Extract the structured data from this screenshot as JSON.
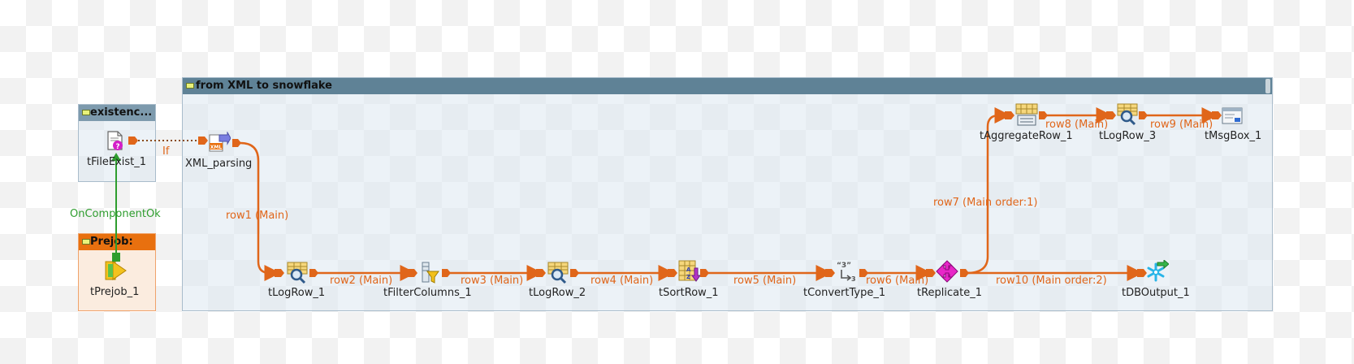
{
  "subjobs": {
    "main": "from XML to snowflake",
    "exist": "existenc...",
    "prejob": "Prejob:"
  },
  "components": {
    "tFileExist_1": "tFileExist_1",
    "tPrejob_1": "tPrejob_1",
    "XML_parsing": "XML_parsing",
    "tLogRow_1": "tLogRow_1",
    "tFilterColumns_1": "tFilterColumns_1",
    "tLogRow_2": "tLogRow_2",
    "tSortRow_1": "tSortRow_1",
    "tConvertType_1": "tConvertType_1",
    "tReplicate_1": "tReplicate_1",
    "tDBOutput_1": "tDBOutput_1",
    "tAggregateRow_1": "tAggregateRow_1",
    "tLogRow_3": "tLogRow_3",
    "tMsgBox_1": "tMsgBox_1"
  },
  "links": {
    "if": "If",
    "on_component_ok": "OnComponentOk",
    "row1": "row1 (Main)",
    "row2": "row2 (Main)",
    "row3": "row3 (Main)",
    "row4": "row4 (Main)",
    "row5": "row5 (Main)",
    "row6": "row6 (Main)",
    "row7": "row7 (Main order:1)",
    "row8": "row8 (Main)",
    "row9": "row9 (Main)",
    "row10": "row10 (Main order:2)"
  },
  "colors": {
    "main_flow": "#e0661a",
    "trigger_ok": "#2e9d2e",
    "if_link": "#8a4a1a",
    "subjob_header": "#5f8296",
    "prejob_header": "#e8700f"
  },
  "icons": {
    "tFileExist_1": "file-exist-icon",
    "tPrejob_1": "prejob-icon",
    "XML_parsing": "xml-input-icon",
    "tLogRow": "log-row-icon",
    "tFilterColumns_1": "filter-columns-icon",
    "tSortRow_1": "sort-row-icon",
    "tConvertType_1": "convert-type-icon",
    "tReplicate_1": "replicate-icon",
    "tDBOutput_1": "snowflake-output-icon",
    "tAggregateRow_1": "aggregate-row-icon",
    "tMsgBox_1": "message-box-icon"
  }
}
